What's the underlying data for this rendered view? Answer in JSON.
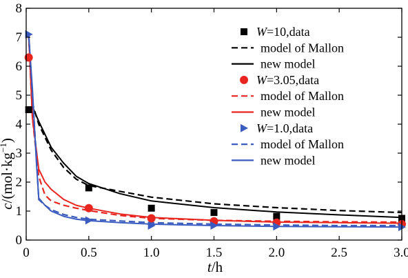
{
  "chart_data": {
    "type": "line",
    "xlabel_var": "t",
    "xlabel_unit": "/h",
    "ylabel_var": "c",
    "ylabel_unit": "/(mol·kg",
    "ylabel_exp": "−1",
    "ylabel_close": ")",
    "xlim": [
      0,
      3.0
    ],
    "ylim": [
      0,
      8
    ],
    "x_ticks": [
      "0",
      "0.5",
      "1.0",
      "1.5",
      "2.0",
      "2.5",
      "3.0"
    ],
    "y_ticks": [
      "0",
      "1",
      "2",
      "3",
      "4",
      "5",
      "6",
      "7",
      "8"
    ],
    "grid": false,
    "legend_position": "top-right",
    "legend": [
      {
        "kind": "data",
        "marker": "square",
        "color": "#000000",
        "var": "W",
        "label": "=10,data"
      },
      {
        "kind": "dashed",
        "color": "#000000",
        "label": "model of Mallon"
      },
      {
        "kind": "solid",
        "color": "#000000",
        "label": "new model"
      },
      {
        "kind": "data",
        "marker": "circle",
        "color": "#e8261f",
        "var": "W",
        "label": "=3.05,data"
      },
      {
        "kind": "dashed",
        "color": "#e8261f",
        "label": "model of Mallon"
      },
      {
        "kind": "solid",
        "color": "#e8261f",
        "label": "new model"
      },
      {
        "kind": "data",
        "marker": "triangle",
        "color": "#3a5bbf",
        "var": "W",
        "label": "=1.0,data"
      },
      {
        "kind": "dashed",
        "color": "#3a5bbf",
        "label": "model of Mallon"
      },
      {
        "kind": "solid",
        "color": "#3a5bbf",
        "label": "new model"
      }
    ],
    "scatter_series": [
      {
        "color": "#000000",
        "marker": "square",
        "x": [
          0.02,
          0.5,
          1.0,
          1.5,
          2.0,
          3.0
        ],
        "y": [
          4.5,
          1.8,
          1.1,
          0.95,
          0.82,
          0.75
        ]
      },
      {
        "color": "#e8261f",
        "marker": "circle",
        "x": [
          0.02,
          0.5,
          1.0,
          1.5,
          2.0,
          3.0
        ],
        "y": [
          6.3,
          1.1,
          0.75,
          0.65,
          0.6,
          0.55
        ]
      },
      {
        "color": "#3a5bbf",
        "marker": "triangle",
        "x": [
          0.02,
          0.5,
          1.0,
          1.5,
          2.0,
          3.0
        ],
        "y": [
          7.1,
          0.68,
          0.5,
          0.5,
          0.47,
          0.45
        ]
      }
    ],
    "line_series": [
      {
        "color": "#000000",
        "style": "dashed",
        "x": [
          0.02,
          0.05,
          0.1,
          0.2,
          0.3,
          0.4,
          0.5,
          0.75,
          1.0,
          1.5,
          2.0,
          2.5,
          3.0
        ],
        "y": [
          7.1,
          4.7,
          4.0,
          3.1,
          2.5,
          2.1,
          1.88,
          1.68,
          1.48,
          1.25,
          1.12,
          1.02,
          0.95
        ]
      },
      {
        "color": "#000000",
        "style": "solid",
        "x": [
          0.02,
          0.05,
          0.1,
          0.2,
          0.3,
          0.4,
          0.5,
          0.75,
          1.0,
          1.5,
          2.0,
          2.5,
          3.0
        ],
        "y": [
          7.1,
          4.6,
          4.1,
          3.2,
          2.65,
          2.2,
          1.95,
          1.6,
          1.35,
          1.12,
          0.97,
          0.87,
          0.78
        ]
      },
      {
        "color": "#e8261f",
        "style": "dashed",
        "x": [
          0.02,
          0.05,
          0.1,
          0.15,
          0.2,
          0.3,
          0.4,
          0.5,
          0.75,
          1.0,
          1.5,
          2.0,
          2.5,
          3.0
        ],
        "y": [
          7.1,
          4.2,
          2.2,
          1.55,
          1.35,
          1.2,
          1.1,
          1.02,
          0.85,
          0.75,
          0.68,
          0.65,
          0.63,
          0.62
        ]
      },
      {
        "color": "#e8261f",
        "style": "solid",
        "x": [
          0.02,
          0.05,
          0.1,
          0.15,
          0.2,
          0.3,
          0.4,
          0.5,
          0.75,
          1.0,
          1.5,
          2.0,
          2.5,
          3.0
        ],
        "y": [
          7.1,
          4.2,
          2.45,
          2.0,
          1.75,
          1.4,
          1.2,
          1.1,
          0.9,
          0.78,
          0.68,
          0.62,
          0.6,
          0.58
        ]
      },
      {
        "color": "#3a5bbf",
        "style": "dashed",
        "x": [
          0.02,
          0.05,
          0.08,
          0.1,
          0.15,
          0.2,
          0.3,
          0.4,
          0.5,
          0.75,
          1.0,
          1.5,
          2.0,
          2.5,
          3.0
        ],
        "y": [
          7.1,
          5.0,
          3.0,
          1.4,
          1.2,
          1.05,
          0.88,
          0.78,
          0.72,
          0.66,
          0.6,
          0.55,
          0.52,
          0.5,
          0.5
        ]
      },
      {
        "color": "#3a5bbf",
        "style": "solid",
        "x": [
          0.02,
          0.05,
          0.08,
          0.1,
          0.15,
          0.2,
          0.3,
          0.4,
          0.5,
          0.75,
          1.0,
          1.5,
          2.0,
          2.5,
          3.0
        ],
        "y": [
          7.1,
          5.2,
          2.8,
          1.45,
          1.2,
          1.0,
          0.82,
          0.72,
          0.67,
          0.6,
          0.55,
          0.5,
          0.47,
          0.46,
          0.45
        ]
      }
    ]
  }
}
